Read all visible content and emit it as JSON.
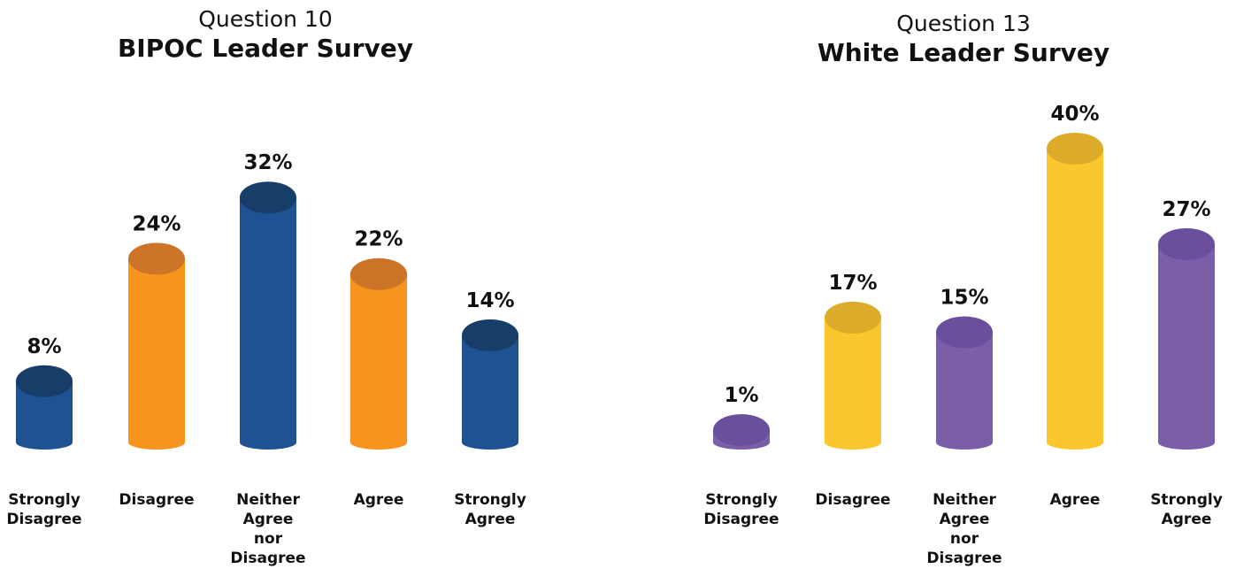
{
  "chart_data": [
    {
      "type": "bar",
      "subtitle": "Question 10",
      "title": "BIPOC Leader Survey",
      "categories": [
        "Strongly Disagree",
        "Disagree",
        "Neither Agree nor Disagree",
        "Agree",
        "Strongly Agree"
      ],
      "values": [
        8,
        24,
        32,
        22,
        14
      ],
      "value_labels": [
        "8%",
        "24%",
        "32%",
        "22%",
        "14%"
      ],
      "colors": [
        "#1f5292",
        "#f7941d",
        "#1f5292",
        "#f7941d",
        "#1f5292"
      ],
      "top_colors": [
        "#173e69",
        "#cc7428",
        "#173e69",
        "#cc7428",
        "#173e69"
      ],
      "grid": false
    },
    {
      "type": "bar",
      "subtitle": "Question 13",
      "title": "White Leader Survey",
      "categories": [
        "Strongly Disagree",
        "Disagree",
        "Neither Agree nor Disagree",
        "Agree",
        "Strongly Agree"
      ],
      "values": [
        1,
        17,
        15,
        40,
        27
      ],
      "value_labels": [
        "1%",
        "17%",
        "15%",
        "40%",
        "27%"
      ],
      "colors": [
        "#7a5ea8",
        "#fcc62e",
        "#7a5ea8",
        "#fcc62e",
        "#7a5ea8"
      ],
      "top_colors": [
        "#6a4f9d",
        "#ddab2a",
        "#6a4f9d",
        "#ddab2a",
        "#6a4f9d"
      ],
      "grid": false
    }
  ]
}
